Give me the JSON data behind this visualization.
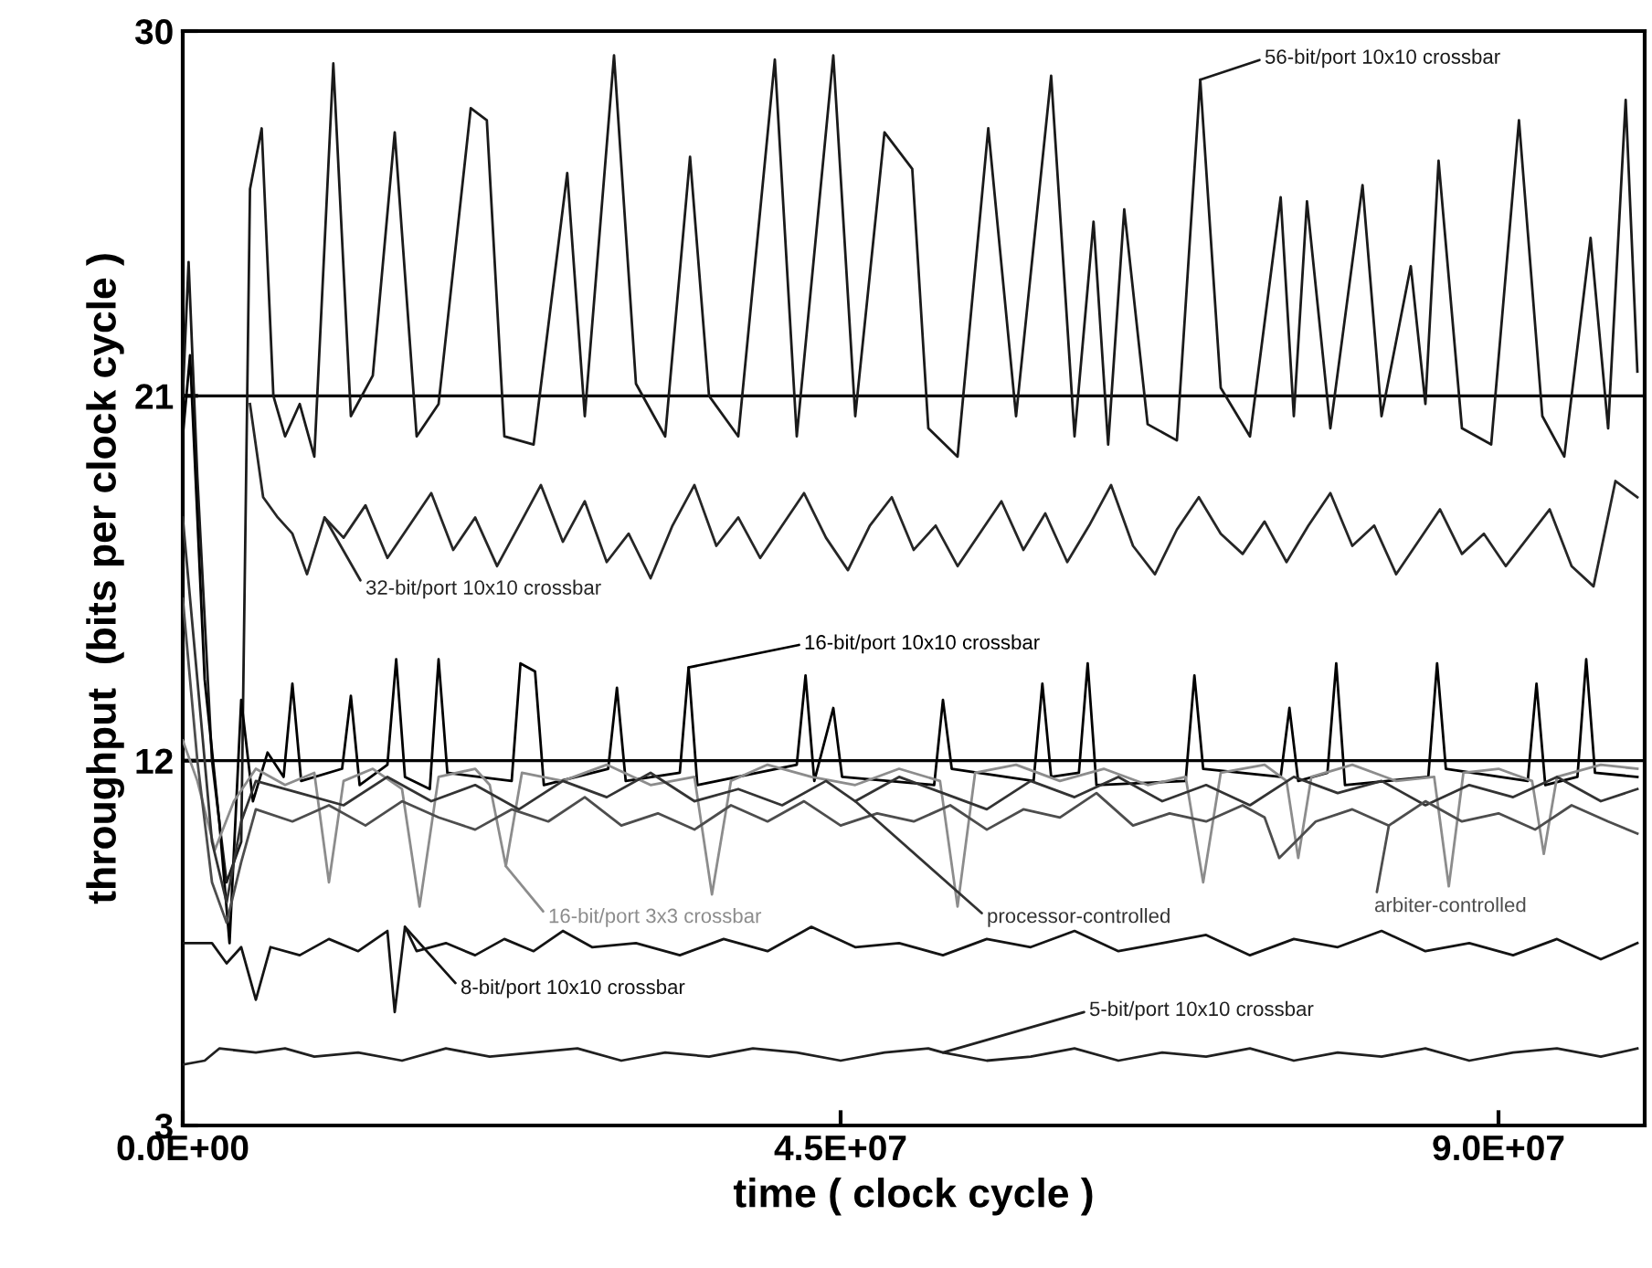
{
  "chart_data": {
    "type": "line",
    "xlabel": "time ( clock cycle )",
    "ylabel": "throughput  (bits per clock cycle )",
    "xlim": [
      0,
      100000000.0
    ],
    "ylim": [
      3,
      30
    ],
    "xticks": [
      {
        "value": 0,
        "label": "0.0E+00"
      },
      {
        "value": 45000000.0,
        "label": "4.5E+07"
      },
      {
        "value": 90000000.0,
        "label": "9.0E+07"
      }
    ],
    "yticks": [
      3,
      12,
      21,
      30
    ],
    "grid": "y",
    "marker": "none",
    "line_style": "solid",
    "series": [
      {
        "name": "56-bit/port 10x10 crossbar",
        "color": "#1a1a1a",
        "x": [
          0,
          400000.0,
          1000000.0,
          2000000.0,
          3000000.0,
          4000000.0,
          4600000.0,
          5400000.0,
          6200000.0,
          7000000.0,
          8000000.0,
          9000000.0,
          10300000.0,
          11500000.0,
          13000000.0,
          14500000.0,
          16000000.0,
          17500000.0,
          19700000.0,
          20800000.0,
          22000000.0,
          24000000.0,
          26300000.0,
          27500000.0,
          29500000.0,
          31000000.0,
          33000000.0,
          34700000.0,
          36000000.0,
          38000000.0,
          40500000.0,
          42000000.0,
          44500000.0,
          46000000.0,
          48000000.0,
          49900000.0,
          51000000.0,
          53000000.0,
          55100000.0,
          57000000.0,
          59400000.0,
          61000000.0,
          62300000.0,
          63300000.0,
          64400000.0,
          66000000.0,
          68000000.0,
          69600000.0,
          71000000.0,
          73000000.0,
          75100000.0,
          76000000.0,
          76900000.0,
          78500000.0,
          80700000.0,
          82000000.0,
          84000000.0,
          85000000.0,
          85900000.0,
          87500000.0,
          89500000.0,
          91400000.0,
          93000000.0,
          94500000.0,
          96300000.0,
          97500000.0,
          98700000.0,
          99500000.0
        ],
        "values": [
          21.0,
          24.3,
          19,
          12,
          9,
          10,
          26.1,
          27.6,
          21,
          20,
          20.8,
          19.5,
          29.2,
          20.5,
          21.5,
          27.5,
          20,
          20.8,
          28.1,
          27.8,
          20,
          19.8,
          26.5,
          20.5,
          29.4,
          21.3,
          20,
          26.9,
          21,
          20,
          29.3,
          20,
          29.4,
          20.5,
          27.5,
          26.6,
          20.2,
          19.5,
          27.6,
          20.5,
          28.9,
          20.0,
          25.3,
          19.8,
          25.6,
          20.3,
          19.9,
          28.8,
          21.2,
          20,
          25.9,
          20.5,
          25.8,
          20.2,
          26.2,
          20.5,
          24.2,
          20.8,
          26.8,
          20.2,
          19.8,
          27.8,
          20.5,
          19.5,
          24.9,
          20.2,
          28.3,
          21.6
        ]
      },
      {
        "name": "32-bit/port 10x10 crossbar",
        "color": "#262626",
        "x": [
          4600000.0,
          5500000.0,
          6500000.0,
          7500000.0,
          8500000.0,
          9700000.0,
          11000000.0,
          12500000.0,
          14000000.0,
          15500000.0,
          17000000.0,
          18500000.0,
          20000000.0,
          21500000.0,
          23000000.0,
          24500000.0,
          26000000.0,
          27500000.0,
          29000000.0,
          30500000.0,
          32000000.0,
          33500000.0,
          35000000.0,
          36500000.0,
          38000000.0,
          39500000.0,
          41000000.0,
          42500000.0,
          44000000.0,
          45500000.0,
          47000000.0,
          48500000.0,
          50000000.0,
          51500000.0,
          53000000.0,
          54500000.0,
          56000000.0,
          57500000.0,
          59000000.0,
          60500000.0,
          62000000.0,
          63500000.0,
          65000000.0,
          66500000.0,
          68000000.0,
          69500000.0,
          71000000.0,
          72500000.0,
          74000000.0,
          75500000.0,
          77000000.0,
          78500000.0,
          80000000.0,
          81500000.0,
          83000000.0,
          84500000.0,
          86000000.0,
          87500000.0,
          89000000.0,
          90500000.0,
          92000000.0,
          93500000.0,
          95000000.0,
          96500000.0,
          98000000.0,
          99500000.0
        ],
        "values": [
          20.8,
          18.5,
          18.0,
          17.6,
          16.6,
          18.0,
          17.5,
          18.3,
          17.0,
          17.8,
          18.6,
          17.2,
          18.0,
          16.8,
          17.8,
          18.8,
          17.4,
          18.4,
          16.9,
          17.6,
          16.5,
          17.8,
          18.8,
          17.3,
          18.0,
          17.0,
          17.8,
          18.6,
          17.5,
          16.7,
          17.8,
          18.5,
          17.2,
          17.8,
          16.8,
          17.6,
          18.4,
          17.2,
          18.1,
          16.9,
          17.8,
          18.8,
          17.3,
          16.6,
          17.7,
          18.5,
          17.6,
          17.1,
          17.9,
          16.9,
          17.8,
          18.6,
          17.3,
          17.8,
          16.6,
          17.4,
          18.2,
          17.1,
          17.6,
          16.8,
          17.5,
          18.2,
          16.8,
          16.3,
          18.9,
          18.5
        ]
      },
      {
        "name": "16-bit/port 10x10 crossbar",
        "color": "#000000",
        "x": [
          0,
          500000.0,
          1500000.0,
          2500000.0,
          3200000.0,
          4000000.0,
          4800000.0,
          5800000.0,
          6900000.0,
          7500000.0,
          8100000.0,
          10900000.0,
          11500000.0,
          12100000.0,
          14000000.0,
          14600000.0,
          15200000.0,
          16900000.0,
          17500000.0,
          18100000.0,
          22500000.0,
          23100000.0,
          24100000.0,
          24700000.0,
          29100000.0,
          29700000.0,
          30300000.0,
          34000000.0,
          34600000.0,
          35200000.0,
          42000000.0,
          42600000.0,
          43200000.0,
          44500000.0,
          45100000.0,
          51400000.0,
          52000000.0,
          52600000.0,
          58200000.0,
          58800000.0,
          59400000.0,
          61300000.0,
          61900000.0,
          62500000.0,
          68600000.0,
          69200000.0,
          69800000.0,
          75100000.0,
          75700000.0,
          76300000.0,
          78300000.0,
          78900000.0,
          79500000.0,
          85200000.0,
          85800000.0,
          86400000.0,
          92000000.0,
          92600000.0,
          93200000.0,
          95400000.0,
          96000000.0,
          96600000.0,
          99500000.0
        ],
        "values": [
          20,
          22,
          14,
          10.5,
          7.5,
          13.5,
          11.0,
          12.2,
          11.6,
          13.9,
          11.5,
          11.8,
          13.6,
          11.4,
          11.9,
          14.5,
          11.6,
          11.3,
          14.5,
          11.7,
          11.5,
          14.4,
          14.2,
          11.4,
          11.8,
          13.8,
          11.5,
          11.7,
          14.3,
          11.4,
          11.9,
          14.1,
          11.5,
          13.3,
          11.6,
          11.4,
          13.5,
          11.8,
          11.5,
          13.9,
          11.6,
          11.7,
          14.4,
          11.4,
          11.5,
          14.1,
          11.8,
          11.6,
          13.3,
          11.5,
          11.7,
          14.4,
          11.4,
          11.6,
          14.4,
          11.8,
          11.5,
          13.9,
          11.4,
          11.6,
          14.5,
          11.7,
          11.6
        ]
      },
      {
        "name": "16-bit/port 3x3 crossbar",
        "color": "#8c8c8c",
        "x": [
          0,
          1000000.0,
          2200000.0,
          3500000.0,
          5000000.0,
          7000000.0,
          9000000.0,
          10000000.0,
          11000000.0,
          13000000.0,
          15000000.0,
          16200000.0,
          17500000.0,
          20000000.0,
          21000000.0,
          22100000.0,
          23200000.0,
          26000000.0,
          29000000.0,
          32000000.0,
          35000000.0,
          36200000.0,
          37500000.0,
          40000000.0,
          43000000.0,
          46000000.0,
          49000000.0,
          51800000.0,
          53000000.0,
          54200000.0,
          57000000.0,
          60000000.0,
          63000000.0,
          66000000.0,
          68600000.0,
          69800000.0,
          71000000.0,
          74000000.0,
          75500000.0,
          76300000.0,
          77200000.0,
          80000000.0,
          83000000.0,
          85600000.0,
          86600000.0,
          87600000.0,
          90000000.0,
          92300000.0,
          93100000.0,
          94000000.0,
          97000000.0,
          99500000.0
        ],
        "values": [
          12.5,
          11.5,
          9.8,
          11.0,
          11.8,
          11.4,
          11.7,
          9.0,
          11.5,
          11.8,
          11.3,
          8.4,
          11.6,
          11.8,
          11.4,
          9.4,
          11.7,
          11.5,
          11.9,
          11.4,
          11.6,
          8.7,
          11.5,
          11.9,
          11.6,
          11.4,
          11.8,
          11.5,
          8.4,
          11.7,
          11.9,
          11.5,
          11.8,
          11.4,
          11.6,
          9.0,
          11.7,
          11.9,
          11.5,
          9.6,
          11.6,
          11.9,
          11.5,
          11.6,
          8.9,
          11.7,
          11.8,
          11.5,
          9.7,
          11.6,
          11.9,
          11.8
        ]
      },
      {
        "name": "processor-controlled",
        "color": "#333333",
        "x": [
          0,
          1000000.0,
          2000000.0,
          3000000.0,
          4000000.0,
          5000000.0,
          8000000.0,
          11000000.0,
          14000000.0,
          17000000.0,
          20000000.0,
          23000000.0,
          26000000.0,
          29000000.0,
          32000000.0,
          35000000.0,
          38000000.0,
          41000000.0,
          44000000.0,
          46000000.0,
          49000000.0,
          52000000.0,
          55000000.0,
          58000000.0,
          61000000.0,
          64000000.0,
          67000000.0,
          70000000.0,
          73000000.0,
          76000000.0,
          79000000.0,
          82000000.0,
          85000000.0,
          88000000.0,
          91000000.0,
          94000000.0,
          97000000.0,
          99500000.0
        ],
        "values": [
          18,
          14,
          10,
          8.5,
          10.5,
          11.5,
          11.2,
          10.9,
          11.6,
          11.0,
          11.4,
          10.8,
          11.5,
          11.1,
          11.7,
          11.0,
          11.3,
          10.9,
          11.5,
          11.0,
          11.6,
          11.2,
          10.8,
          11.5,
          11.1,
          11.6,
          11.0,
          11.4,
          10.9,
          11.6,
          11.2,
          11.5,
          10.9,
          11.4,
          11.1,
          11.6,
          11.0,
          11.3
        ]
      },
      {
        "name": "arbiter-controlled",
        "color": "#4d4d4d",
        "x": [
          0,
          1000000.0,
          2000000.0,
          3000000.0,
          4000000.0,
          5000000.0,
          7500000.0,
          10000000.0,
          12500000.0,
          15000000.0,
          17500000.0,
          20000000.0,
          22500000.0,
          25000000.0,
          27500000.0,
          30000000.0,
          32500000.0,
          35000000.0,
          37500000.0,
          40000000.0,
          42500000.0,
          45000000.0,
          47500000.0,
          50000000.0,
          52500000.0,
          55000000.0,
          57500000.0,
          60000000.0,
          62500000.0,
          65000000.0,
          67500000.0,
          70000000.0,
          72500000.0,
          74000000.0,
          75000000.0,
          77500000.0,
          80000000.0,
          82500000.0,
          85000000.0,
          87500000.0,
          90000000.0,
          92500000.0,
          95000000.0,
          97500000.0,
          99500000.0
        ],
        "values": [
          16,
          12,
          9,
          8.0,
          9.5,
          10.8,
          10.5,
          10.9,
          10.4,
          11.0,
          10.6,
          10.3,
          10.8,
          10.5,
          11.1,
          10.4,
          10.7,
          10.3,
          10.9,
          10.5,
          11.0,
          10.4,
          10.7,
          10.5,
          10.9,
          10.3,
          10.8,
          10.6,
          11.2,
          10.4,
          10.7,
          10.5,
          10.9,
          10.6,
          9.6,
          10.5,
          10.8,
          10.4,
          11.0,
          10.5,
          10.7,
          10.3,
          10.9,
          10.5,
          10.2
        ]
      },
      {
        "name": "8-bit/port 10x10 crossbar",
        "color": "#141414",
        "x": [
          0,
          2000000.0,
          3000000.0,
          4000000.0,
          5000000.0,
          6000000.0,
          8000000.0,
          10000000.0,
          12000000.0,
          14000000.0,
          14500000.0,
          15200000.0,
          16000000.0,
          18000000.0,
          20000000.0,
          22000000.0,
          24000000.0,
          26000000.0,
          28000000.0,
          31000000.0,
          34000000.0,
          37000000.0,
          40000000.0,
          43000000.0,
          46000000.0,
          49000000.0,
          52000000.0,
          55000000.0,
          58000000.0,
          61000000.0,
          64000000.0,
          67000000.0,
          70000000.0,
          73000000.0,
          76000000.0,
          79000000.0,
          82000000.0,
          85000000.0,
          88000000.0,
          91000000.0,
          94000000.0,
          97000000.0,
          99500000.0
        ],
        "values": [
          7.5,
          7.5,
          7.0,
          7.4,
          6.1,
          7.4,
          7.2,
          7.6,
          7.3,
          7.8,
          5.8,
          7.9,
          7.3,
          7.5,
          7.2,
          7.6,
          7.3,
          7.8,
          7.4,
          7.5,
          7.2,
          7.6,
          7.3,
          7.9,
          7.4,
          7.5,
          7.2,
          7.6,
          7.4,
          7.8,
          7.3,
          7.5,
          7.7,
          7.2,
          7.6,
          7.4,
          7.8,
          7.3,
          7.5,
          7.2,
          7.6,
          7.1,
          7.5
        ]
      },
      {
        "name": "5-bit/port 10x10 crossbar",
        "color": "#202020",
        "x": [
          0,
          1500000.0,
          2500000.0,
          5000000.0,
          7000000.0,
          9000000.0,
          12000000.0,
          15000000.0,
          18000000.0,
          21000000.0,
          24000000.0,
          27000000.0,
          30000000.0,
          33000000.0,
          36000000.0,
          39000000.0,
          42000000.0,
          45000000.0,
          48000000.0,
          51000000.0,
          52000000.0,
          55000000.0,
          58000000.0,
          61000000.0,
          64000000.0,
          67000000.0,
          70000000.0,
          73000000.0,
          76000000.0,
          79000000.0,
          82000000.0,
          85000000.0,
          88000000.0,
          91000000.0,
          94000000.0,
          97000000.0,
          99500000.0
        ],
        "values": [
          4.5,
          4.6,
          4.9,
          4.8,
          4.9,
          4.7,
          4.8,
          4.6,
          4.9,
          4.7,
          4.8,
          4.9,
          4.6,
          4.8,
          4.7,
          4.9,
          4.8,
          4.6,
          4.8,
          4.9,
          4.8,
          4.6,
          4.7,
          4.9,
          4.6,
          4.8,
          4.7,
          4.9,
          4.6,
          4.8,
          4.7,
          4.9,
          4.6,
          4.8,
          4.9,
          4.7,
          4.9
        ]
      }
    ]
  }
}
